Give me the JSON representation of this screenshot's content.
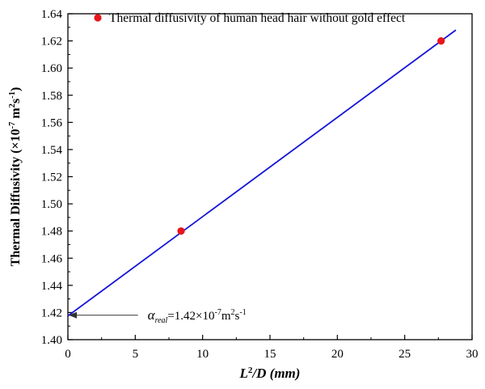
{
  "chart_data": {
    "type": "scatter",
    "title": "",
    "xlabel": {
      "main": "L",
      "sup": "2",
      "rest": "/D (mm)"
    },
    "ylabel": {
      "main": "Thermal Diffusivity (×10",
      "sup1": "-7",
      "mid": " m",
      "sup2": "2",
      "mid2": "s",
      "sup3": "-1",
      "end": ")"
    },
    "xlim": [
      0,
      30
    ],
    "ylim": [
      1.4,
      1.64
    ],
    "xticks": [
      0,
      5,
      10,
      15,
      20,
      25,
      30
    ],
    "yticks": [
      1.4,
      1.42,
      1.44,
      1.46,
      1.48,
      1.5,
      1.52,
      1.54,
      1.56,
      1.58,
      1.6,
      1.62,
      1.64
    ],
    "xtick_labels": [
      "0",
      "5",
      "10",
      "15",
      "20",
      "25",
      "30"
    ],
    "ytick_labels": [
      "1.40",
      "1.42",
      "1.44",
      "1.46",
      "1.48",
      "1.50",
      "1.52",
      "1.54",
      "1.56",
      "1.58",
      "1.60",
      "1.62",
      "1.64"
    ],
    "series": [
      {
        "name": "Thermal diffusivity of human head hair without gold effect",
        "kind": "scatter",
        "color": "#e8141c",
        "points": [
          [
            8.4,
            1.48
          ],
          [
            27.7,
            1.62
          ]
        ]
      },
      {
        "kind": "line",
        "color": "#1414d8",
        "points": [
          [
            0,
            1.4175
          ],
          [
            28.8,
            1.628
          ]
        ]
      }
    ],
    "annotation": {
      "symbol": "α",
      "subscript": "real",
      "text": "=1.42×10",
      "sup1": "-7",
      "unit1": "m",
      "sup2": "2",
      "unit2": "s",
      "sup3": "-1",
      "arrow_from": [
        5.2,
        1.418
      ],
      "arrow_to": [
        0,
        1.418
      ]
    },
    "legend_position": "top"
  }
}
